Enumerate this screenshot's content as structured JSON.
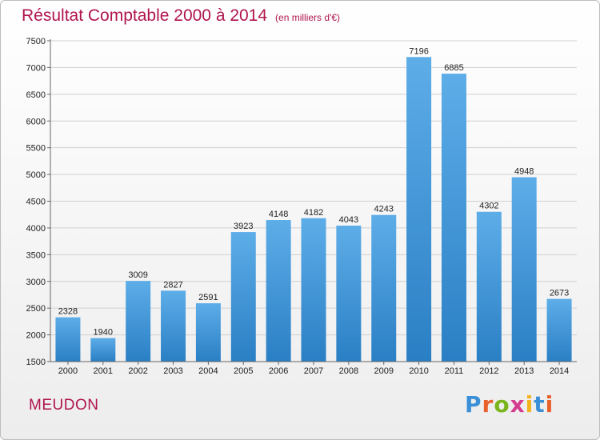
{
  "header": {
    "title": "Résultat Comptable 2000 à 2014",
    "subtitle": "(en milliers d'€)"
  },
  "footer": {
    "city": "MEUDON",
    "logo": "Proxiti",
    "logo_colors": [
      "#3a8fd6",
      "#e8612c",
      "#7ab51d",
      "#d43d8f",
      "#f3b21b",
      "#3a8fd6",
      "#e8612c"
    ]
  },
  "chart_data": {
    "type": "bar",
    "title": "Résultat Comptable 2000 à 2014",
    "subtitle": "(en milliers d'€)",
    "categories": [
      "2000",
      "2001",
      "2002",
      "2003",
      "2004",
      "2005",
      "2006",
      "2007",
      "2008",
      "2009",
      "2010",
      "2011",
      "2012",
      "2013",
      "2014"
    ],
    "values": [
      2328,
      1940,
      3009,
      2827,
      2591,
      3923,
      4148,
      4182,
      4043,
      4243,
      7196,
      6885,
      4302,
      4948,
      2673
    ],
    "ylim": [
      1500,
      7500
    ],
    "yticks": [
      1500,
      2000,
      2500,
      3000,
      3500,
      4000,
      4500,
      5000,
      5500,
      6000,
      6500,
      7000,
      7500
    ],
    "grid": true,
    "bar_color_top": "#5dade8",
    "bar_color_bottom": "#2a7fc4"
  }
}
